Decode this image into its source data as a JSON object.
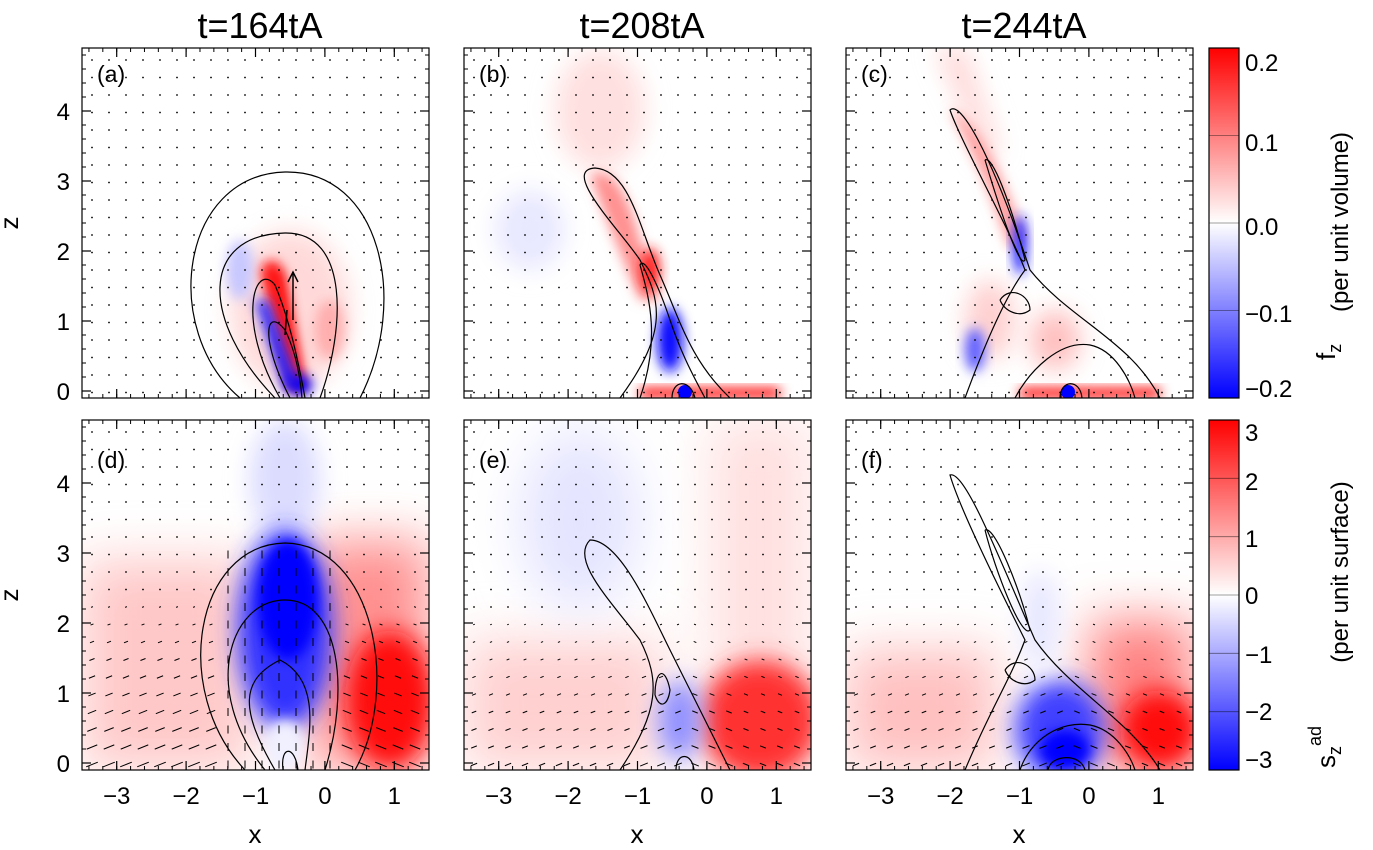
{
  "figure": {
    "columns": [
      {
        "time_label": "t=164tA"
      },
      {
        "time_label": "t=208tA"
      },
      {
        "time_label": "t=244tA"
      }
    ],
    "panel_letters": [
      "(a)",
      "(b)",
      "(c)",
      "(d)",
      "(e)",
      "(f)"
    ],
    "x_label": "x",
    "z_label": "z",
    "colorbars": [
      {
        "label_main": "f",
        "label_sub": "z",
        "label_sup": "",
        "label_suffix": "(per unit volume)",
        "ticks": [
          "0.2",
          "0.1",
          "0.0",
          "−0.1",
          "−0.2"
        ],
        "min": -0.2,
        "max": 0.2,
        "colors": {
          "negative": "#0000ff",
          "zero": "#ffffff",
          "positive": "#ff0000"
        }
      },
      {
        "label_main": "s",
        "label_sub": "z",
        "label_sup": "ad",
        "label_suffix": "(per unit surface)",
        "ticks": [
          "3",
          "2",
          "1",
          "0",
          "−1",
          "−2",
          "−3"
        ],
        "min": -3,
        "max": 3,
        "colors": {
          "negative": "#0000ff",
          "zero": "#ffffff",
          "positive": "#ff0000"
        }
      }
    ]
  },
  "chart_data": {
    "type": "heatmap",
    "x_ticks": [
      "−3",
      "−2",
      "−1",
      "0",
      "1"
    ],
    "x_tick_values": [
      -3,
      -2,
      -1,
      0,
      1
    ],
    "z_ticks": [
      "0",
      "1",
      "2",
      "3",
      "4"
    ],
    "z_tick_values": [
      0,
      1,
      2,
      3,
      4
    ],
    "xlim": [
      -3.5,
      1.5
    ],
    "zlim": [
      -0.1,
      4.9
    ],
    "panels": [
      {
        "id": "a",
        "time": "t=164tA",
        "quantity": "f_z",
        "colorbar": 0
      },
      {
        "id": "b",
        "time": "t=208tA",
        "quantity": "f_z",
        "colorbar": 0
      },
      {
        "id": "c",
        "time": "t=244tA",
        "quantity": "f_z",
        "colorbar": 0
      },
      {
        "id": "d",
        "time": "t=164tA",
        "quantity": "s_z^ad",
        "colorbar": 1
      },
      {
        "id": "e",
        "time": "t=208tA",
        "quantity": "s_z^ad",
        "colorbar": 1
      },
      {
        "id": "f",
        "time": "t=244tA",
        "quantity": "s_z^ad",
        "colorbar": 1
      }
    ]
  }
}
